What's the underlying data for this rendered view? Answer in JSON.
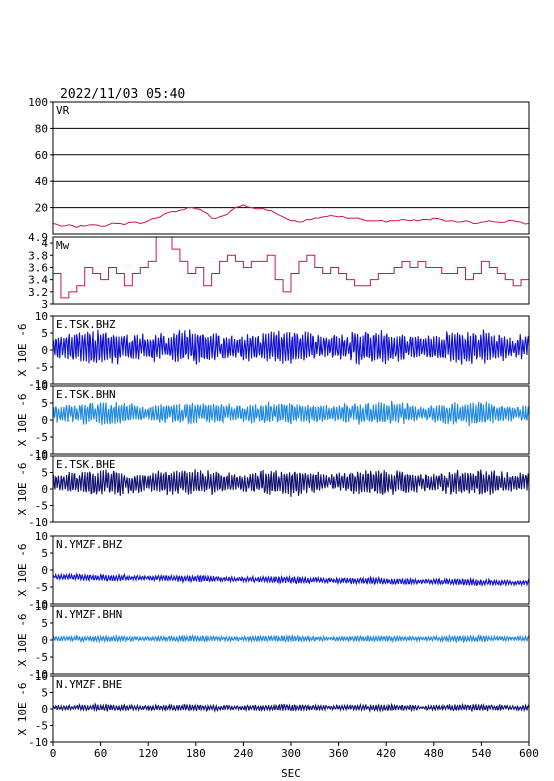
{
  "title": "2022/11/03 05:40",
  "x_axis_label": "SEC",
  "chart_data": [
    {
      "type": "line",
      "label": "VR",
      "ylim": [
        0,
        100
      ],
      "yticks": [
        20,
        40,
        60,
        80,
        100
      ],
      "grid": "horizontal",
      "color": "#d0144a",
      "x": [
        0,
        10,
        20,
        30,
        40,
        50,
        60,
        70,
        80,
        90,
        100,
        110,
        120,
        130,
        140,
        150,
        160,
        170,
        180,
        190,
        200,
        210,
        220,
        230,
        240,
        250,
        260,
        270,
        280,
        290,
        300,
        310,
        320,
        330,
        340,
        350,
        360,
        370,
        380,
        390,
        400,
        410,
        420,
        430,
        440,
        450,
        460,
        470,
        480,
        490,
        500,
        510,
        520,
        530,
        540,
        550,
        560,
        570,
        580,
        590,
        600
      ],
      "values": [
        8,
        6,
        7,
        5,
        6,
        7,
        6,
        7,
        8,
        7,
        9,
        8,
        10,
        12,
        15,
        17,
        18,
        20,
        19,
        17,
        12,
        13,
        15,
        20,
        22,
        20,
        19,
        18,
        16,
        13,
        10,
        9,
        11,
        12,
        13,
        14,
        13,
        12,
        12,
        11,
        10,
        10,
        9,
        10,
        11,
        10,
        10,
        11,
        12,
        11,
        10,
        9,
        10,
        8,
        9,
        10,
        9,
        9,
        10,
        9,
        8
      ]
    },
    {
      "type": "line",
      "label": "Mw",
      "ylim": [
        3.0,
        4.1
      ],
      "yticks": [
        3.0,
        3.2,
        3.4,
        3.6,
        3.8,
        4.0
      ],
      "top_tick": "4.9",
      "color": "#d0144a",
      "x": [
        0,
        10,
        20,
        30,
        40,
        50,
        60,
        70,
        80,
        90,
        100,
        110,
        120,
        130,
        140,
        150,
        160,
        170,
        180,
        190,
        200,
        210,
        220,
        230,
        240,
        250,
        260,
        270,
        280,
        290,
        300,
        310,
        320,
        330,
        340,
        350,
        360,
        370,
        380,
        390,
        400,
        410,
        420,
        430,
        440,
        450,
        460,
        470,
        480,
        490,
        500,
        510,
        520,
        530,
        540,
        550,
        560,
        570,
        580,
        590,
        600
      ],
      "values": [
        3.5,
        3.1,
        3.2,
        3.3,
        3.6,
        3.5,
        3.4,
        3.6,
        3.5,
        3.3,
        3.5,
        3.6,
        3.7,
        4.1,
        4.1,
        3.9,
        3.7,
        3.5,
        3.6,
        3.3,
        3.5,
        3.7,
        3.8,
        3.7,
        3.6,
        3.7,
        3.7,
        3.8,
        3.4,
        3.2,
        3.5,
        3.7,
        3.8,
        3.6,
        3.5,
        3.6,
        3.5,
        3.4,
        3.3,
        3.3,
        3.4,
        3.5,
        3.5,
        3.6,
        3.7,
        3.6,
        3.7,
        3.6,
        3.6,
        3.5,
        3.5,
        3.6,
        3.4,
        3.5,
        3.7,
        3.6,
        3.5,
        3.4,
        3.3,
        3.4,
        3.1
      ]
    },
    {
      "type": "line",
      "label": "E.TSK.BHZ",
      "ylim": [
        -10,
        10
      ],
      "yticks": [
        -10,
        -5,
        0,
        5,
        10
      ],
      "ylabel": "X 10E -6",
      "color": "#1010d0",
      "mean": 0.8,
      "amplitude": 4.5
    },
    {
      "type": "line",
      "label": "E.TSK.BHN",
      "ylim": [
        -10,
        10
      ],
      "yticks": [
        -10,
        -5,
        0,
        5,
        10
      ],
      "ylabel": "X 10E -6",
      "color": "#1e88e0",
      "mean": 2.0,
      "amplitude": 3.0
    },
    {
      "type": "line",
      "label": "E.TSK.BHE",
      "ylim": [
        -10,
        10
      ],
      "yticks": [
        -10,
        -5,
        0,
        5,
        10
      ],
      "ylabel": "X 10E -6",
      "color": "#101070",
      "mean": 2.0,
      "amplitude": 3.5
    },
    {
      "type": "line",
      "label": "N.YMZF.BHZ",
      "ylim": [
        -10,
        10
      ],
      "yticks": [
        -10,
        -5,
        0,
        5,
        10
      ],
      "ylabel": "X 10E -6",
      "color": "#1010d0",
      "mean_start": -2.0,
      "mean_end": -3.8,
      "amplitude": 0.9
    },
    {
      "type": "line",
      "label": "N.YMZF.BHN",
      "ylim": [
        -10,
        10
      ],
      "yticks": [
        -10,
        -5,
        0,
        5,
        10
      ],
      "ylabel": "X 10E -6",
      "color": "#1e88e0",
      "mean": 0.4,
      "amplitude": 0.8
    },
    {
      "type": "line",
      "label": "N.YMZF.BHE",
      "ylim": [
        -10,
        10
      ],
      "yticks": [
        -10,
        -5,
        0,
        5,
        10
      ],
      "ylabel": "X 10E -6",
      "color": "#101070",
      "mean": 0.4,
      "amplitude": 0.9
    }
  ],
  "x_ticks": [
    0,
    60,
    120,
    180,
    240,
    300,
    360,
    420,
    480,
    540,
    600
  ],
  "xlim": [
    0,
    600
  ]
}
